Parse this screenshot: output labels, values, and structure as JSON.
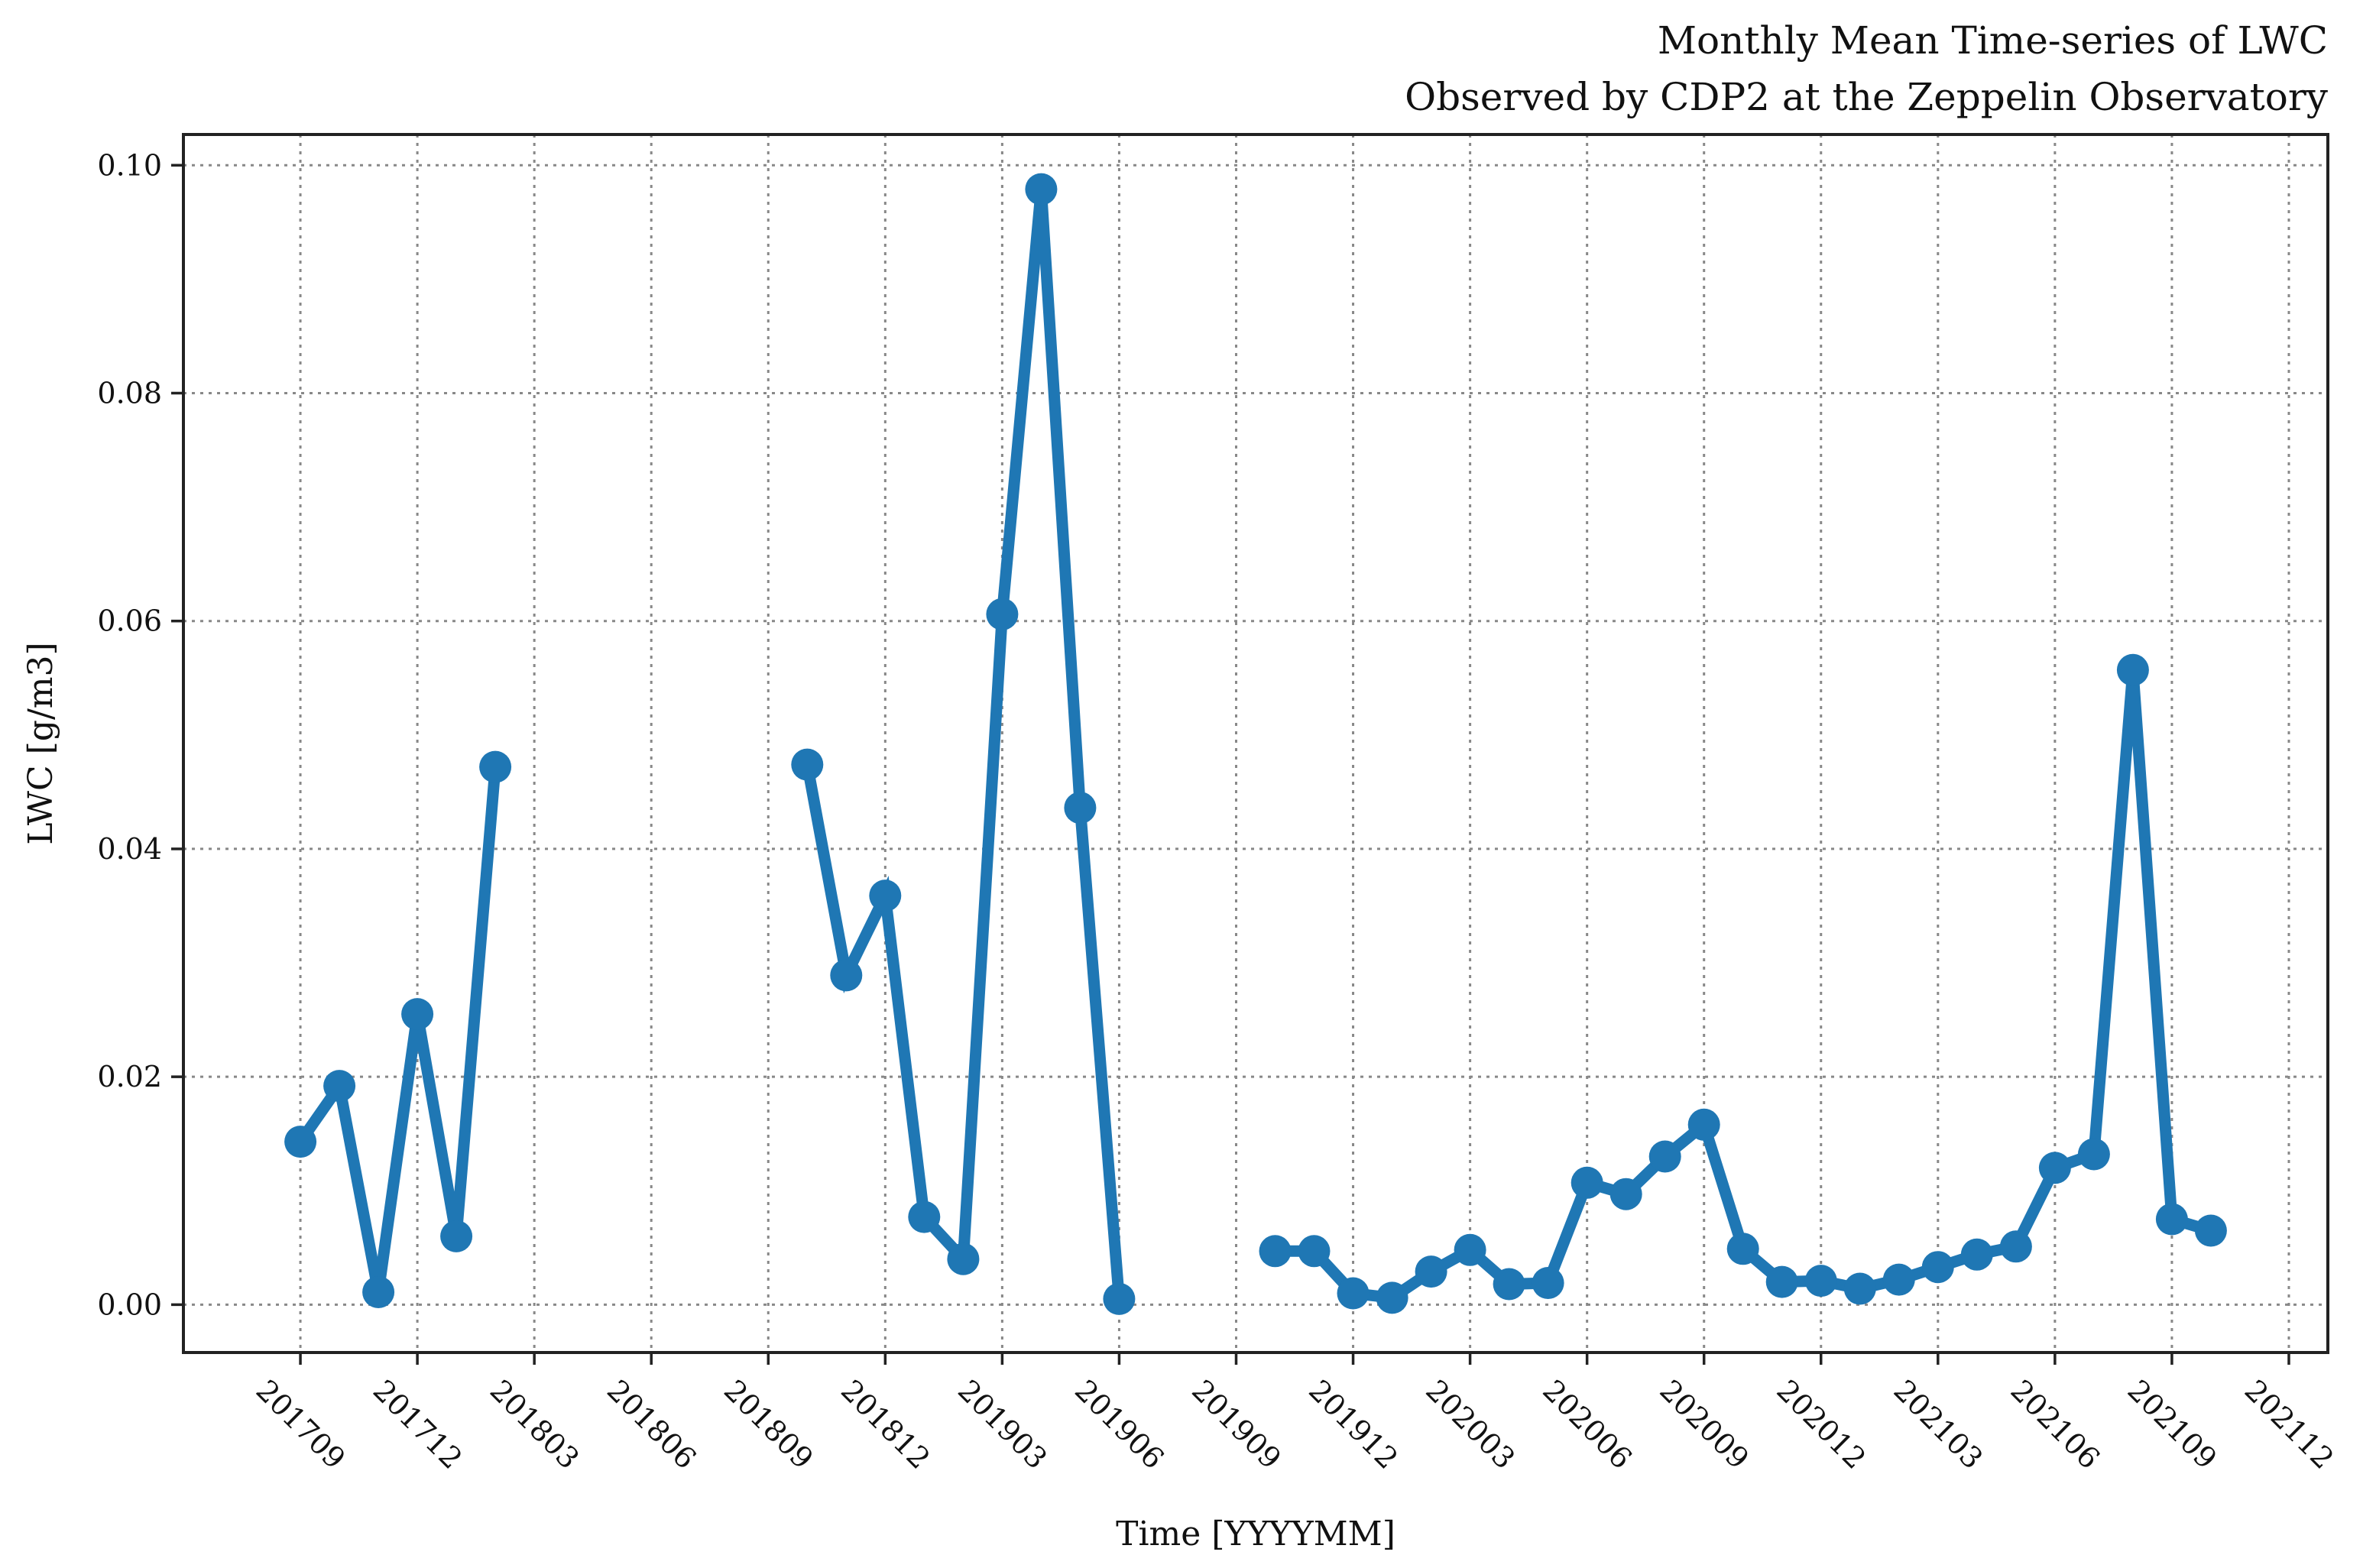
{
  "chart_data": {
    "type": "line",
    "title": [
      "Monthly Mean Time-series of LWC",
      "Observed by CDP2 at the Zeppelin Observatory"
    ],
    "xlabel": "Time [YYYYMM]",
    "ylabel": "LWC [g/m3]",
    "ylim": [
      -0.0042,
      0.1027
    ],
    "xlim": [
      "2017-06",
      "2022-01"
    ],
    "x_ticks": [
      "201709",
      "201712",
      "201803",
      "201806",
      "201809",
      "201812",
      "201903",
      "201906",
      "201909",
      "201912",
      "202003",
      "202006",
      "202009",
      "202012",
      "202103",
      "202106",
      "202109",
      "202112"
    ],
    "y_ticks": [
      "0.00",
      "0.02",
      "0.04",
      "0.06",
      "0.08",
      "0.10"
    ],
    "y_tick_values": [
      0.0,
      0.02,
      0.04,
      0.06,
      0.08,
      0.1
    ],
    "grid": true,
    "color": "#1f77b4",
    "series": [
      {
        "segments": [
          [
            {
              "x": "2017-09",
              "y": 0.0143
            },
            {
              "x": "2017-10",
              "y": 0.0192
            },
            {
              "x": "2017-11",
              "y": 0.0011
            },
            {
              "x": "2017-12",
              "y": 0.0255
            },
            {
              "x": "2018-01",
              "y": 0.006
            },
            {
              "x": "2018-02",
              "y": 0.0472
            }
          ],
          [
            {
              "x": "2018-10",
              "y": 0.0474
            },
            {
              "x": "2018-11",
              "y": 0.0289
            },
            {
              "x": "2018-12",
              "y": 0.0359
            },
            {
              "x": "2019-01",
              "y": 0.0077
            },
            {
              "x": "2019-02",
              "y": 0.004
            },
            {
              "x": "2019-03",
              "y": 0.0606
            },
            {
              "x": "2019-04",
              "y": 0.0979
            },
            {
              "x": "2019-05",
              "y": 0.0436
            },
            {
              "x": "2019-06",
              "y": 0.0005
            }
          ],
          [
            {
              "x": "2019-10",
              "y": 0.0047
            },
            {
              "x": "2019-11",
              "y": 0.0047
            },
            {
              "x": "2019-12",
              "y": 0.001
            },
            {
              "x": "2020-01",
              "y": 0.0006
            },
            {
              "x": "2020-02",
              "y": 0.0029
            },
            {
              "x": "2020-03",
              "y": 0.0048
            },
            {
              "x": "2020-04",
              "y": 0.0018
            },
            {
              "x": "2020-05",
              "y": 0.0019
            },
            {
              "x": "2020-06",
              "y": 0.0107
            },
            {
              "x": "2020-07",
              "y": 0.0097
            },
            {
              "x": "2020-08",
              "y": 0.013
            },
            {
              "x": "2020-09",
              "y": 0.0158
            },
            {
              "x": "2020-10",
              "y": 0.0049
            },
            {
              "x": "2020-11",
              "y": 0.002
            },
            {
              "x": "2020-12",
              "y": 0.0021
            },
            {
              "x": "2021-01",
              "y": 0.0014
            },
            {
              "x": "2021-02",
              "y": 0.0022
            },
            {
              "x": "2021-03",
              "y": 0.0033
            },
            {
              "x": "2021-04",
              "y": 0.0044
            },
            {
              "x": "2021-05",
              "y": 0.0051
            },
            {
              "x": "2021-06",
              "y": 0.012
            },
            {
              "x": "2021-07",
              "y": 0.0132
            },
            {
              "x": "2021-08",
              "y": 0.0557
            },
            {
              "x": "2021-09",
              "y": 0.0075
            },
            {
              "x": "2021-10",
              "y": 0.0065
            }
          ]
        ]
      }
    ]
  }
}
